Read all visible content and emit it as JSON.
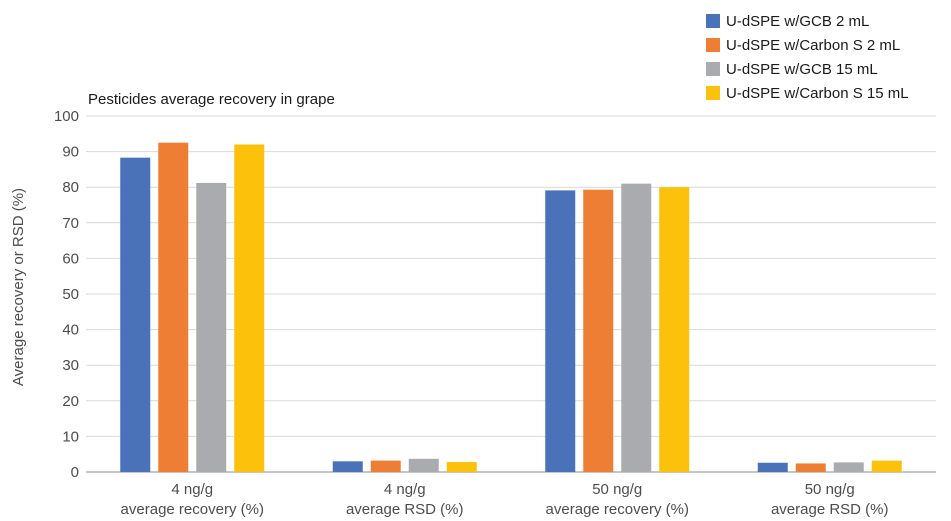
{
  "chart_data": {
    "type": "bar",
    "title": "Pesticides average recovery in grape",
    "ylabel": "Average recovery or RSD (%)",
    "xlabel": "",
    "ylim": [
      0,
      100
    ],
    "yticks": [
      0,
      10,
      20,
      30,
      40,
      50,
      60,
      70,
      80,
      90,
      100
    ],
    "grid": true,
    "legend_position": "top-right",
    "categories": [
      [
        "4 ng/g",
        "average recovery (%)"
      ],
      [
        "4 ng/g",
        "average RSD (%)"
      ],
      [
        "50 ng/g",
        "average recovery (%)"
      ],
      [
        "50 ng/g",
        "average RSD (%)"
      ]
    ],
    "series": [
      {
        "name": "U-dSPE w/GCB 2 mL",
        "color": "#4a72b8",
        "values": [
          88.3,
          3.0,
          79.1,
          2.6
        ]
      },
      {
        "name": "U-dSPE w/Carbon S 2 mL",
        "color": "#ee7e33",
        "values": [
          92.5,
          3.2,
          79.3,
          2.4
        ]
      },
      {
        "name": "U-dSPE w/GCB 15 mL",
        "color": "#a9abae",
        "values": [
          81.2,
          3.7,
          81.0,
          2.7
        ]
      },
      {
        "name": "U-dSPE w/Carbon S 15 mL",
        "color": "#fcc20b",
        "values": [
          92.0,
          2.8,
          80.0,
          3.2
        ]
      }
    ]
  }
}
